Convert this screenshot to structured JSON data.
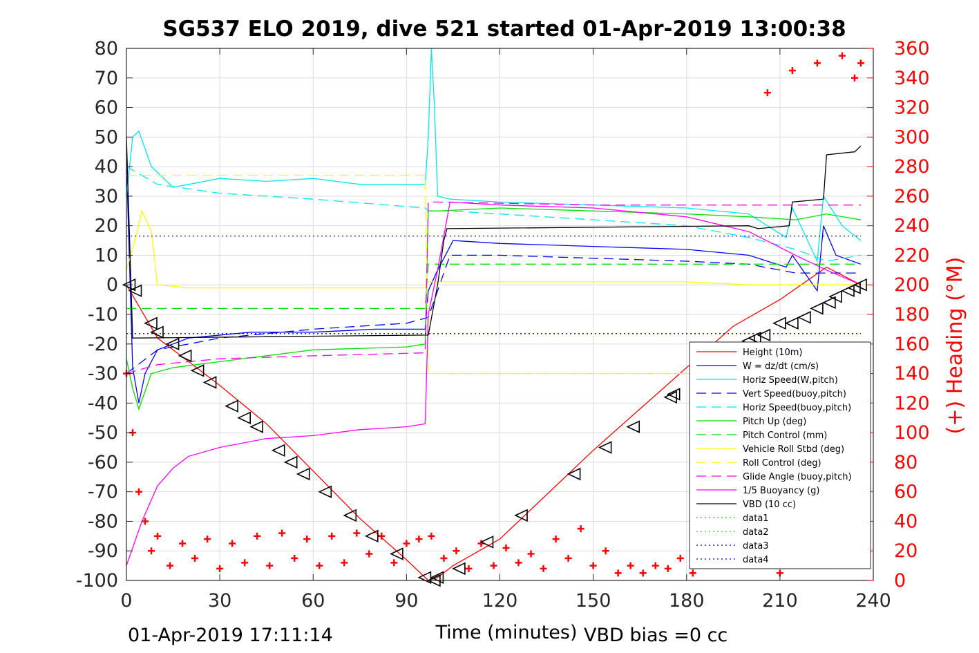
{
  "chart_data": {
    "type": "line",
    "title": "SG537 ELO 2019, dive 521 started 01-Apr-2019 13:00:38",
    "xlabel": "Time (minutes)",
    "ylabel_right": "(+) Heading (°M)",
    "xlim": [
      0,
      240
    ],
    "ylim": [
      -100,
      80
    ],
    "ylim_right": [
      0,
      360
    ],
    "xticks": [
      "0",
      "30",
      "60",
      "90",
      "120",
      "150",
      "180",
      "210",
      "240"
    ],
    "yticks": [
      "80",
      "70",
      "60",
      "50",
      "40",
      "30",
      "20",
      "10",
      "0",
      "-10",
      "-20",
      "-30",
      "-40",
      "-50",
      "-60",
      "-70",
      "-80",
      "-90",
      "-100"
    ],
    "yticks_right": [
      "360",
      "340",
      "320",
      "300",
      "280",
      "260",
      "240",
      "220",
      "200",
      "180",
      "160",
      "140",
      "120",
      "100",
      "80",
      "60",
      "40",
      "20",
      "0"
    ],
    "grid": true,
    "legend_position": "bottom-right",
    "footer_left": "01-Apr-2019 17:11:14",
    "footer_right": "VBD bias =0 cc",
    "series": [
      {
        "name": "Height (10m)",
        "color": "#ff0000",
        "style": "solid",
        "x": [
          0,
          10,
          20,
          30,
          45,
          60,
          75,
          90,
          97,
          100,
          105,
          120,
          135,
          150,
          165,
          180,
          195,
          210,
          225,
          236
        ],
        "y": [
          0,
          -18,
          -26,
          -34,
          -47,
          -63,
          -79,
          -93,
          -100,
          -99,
          -95,
          -86,
          -71,
          -56,
          -42,
          -28,
          -14,
          -5,
          6,
          0
        ]
      },
      {
        "name": "W = dz/dt (cm/s)",
        "color": "#0000ff",
        "style": "solid",
        "x": [
          0,
          2,
          4,
          6,
          10,
          20,
          40,
          60,
          80,
          96,
          97,
          100,
          105,
          120,
          150,
          180,
          200,
          212,
          214,
          222,
          224,
          228,
          236
        ],
        "y": [
          42,
          -28,
          -40,
          -30,
          -22,
          -18,
          -16,
          -16,
          -15,
          -15,
          -2,
          5,
          15,
          14,
          13,
          12,
          10,
          6,
          10,
          -2,
          20,
          10,
          7
        ]
      },
      {
        "name": "Horiz Speed(W,pitch)",
        "color": "#00e5ee",
        "style": "solid",
        "x": [
          0,
          2,
          4,
          8,
          15,
          30,
          45,
          60,
          75,
          90,
          96,
          97,
          98,
          99,
          100,
          104,
          120,
          150,
          180,
          200,
          212,
          214,
          222,
          224,
          230,
          236
        ],
        "y": [
          30,
          50,
          52,
          40,
          33,
          36,
          35,
          36,
          34,
          34,
          34,
          50,
          80,
          60,
          30,
          29,
          28,
          27,
          26,
          24,
          16,
          26,
          8,
          30,
          20,
          15
        ]
      },
      {
        "name": "Vert Speed(buoy,pitch)",
        "color": "#0000ff",
        "style": "dashed",
        "x": [
          0,
          10,
          30,
          60,
          90,
          97,
          104,
          120,
          150,
          180,
          200,
          215,
          236
        ],
        "y": [
          -30,
          -22,
          -18,
          -15,
          -13,
          -11,
          10,
          10,
          9,
          8,
          7,
          4,
          4
        ]
      },
      {
        "name": "Horiz Speed(buoy,pitch)",
        "color": "#00e5ee",
        "style": "dashed",
        "x": [
          0,
          10,
          30,
          60,
          96,
          97,
          104,
          120,
          150,
          180,
          200,
          215,
          225,
          236
        ],
        "y": [
          40,
          34,
          31,
          29,
          26,
          25,
          25,
          24,
          22,
          20,
          16,
          12,
          8,
          10
        ]
      },
      {
        "name": "Pitch Up (deg)",
        "color": "#00dd00",
        "style": "solid",
        "x": [
          0,
          2,
          4,
          8,
          15,
          30,
          60,
          90,
          96,
          97,
          100,
          120,
          150,
          180,
          200,
          215,
          225,
          236
        ],
        "y": [
          -25,
          -35,
          -42,
          -30,
          -28,
          -26,
          -22,
          -21,
          -20,
          25,
          25,
          26,
          25,
          24,
          23,
          22,
          24,
          22
        ]
      },
      {
        "name": "Pitch Control (mm)",
        "color": "#00dd00",
        "style": "dashed",
        "x": [
          0,
          5,
          30,
          96,
          97,
          120,
          180,
          236
        ],
        "y": [
          -8,
          -8,
          -8,
          -8,
          7,
          7,
          7,
          7
        ]
      },
      {
        "name": "Vehicle Roll Stbd (deg)",
        "color": "#ffff00",
        "style": "solid",
        "x": [
          0,
          3,
          5,
          8,
          10,
          20,
          40,
          60,
          80,
          96,
          97,
          120,
          150,
          180,
          200,
          236
        ],
        "y": [
          5,
          16,
          25,
          18,
          0,
          -1,
          -1,
          -1,
          -1,
          -1,
          1,
          1,
          1,
          1,
          0,
          0
        ]
      },
      {
        "name": "Roll Control (deg)",
        "color": "#ffff00",
        "style": "dashed",
        "x": [
          0,
          96,
          97,
          236
        ],
        "y": [
          37,
          37,
          -30,
          -30
        ]
      },
      {
        "name": "Glide Angle (buoy,pitch)",
        "color": "#ff00ff",
        "style": "dashed",
        "x": [
          0,
          10,
          30,
          60,
          96,
          97,
          100,
          150,
          200,
          236
        ],
        "y": [
          -30,
          -27,
          -25,
          -24,
          -23,
          28,
          28,
          27,
          27,
          27
        ]
      },
      {
        "name": "1/5 Buoyancy (g)",
        "color": "#ff00ff",
        "style": "solid",
        "x": [
          0,
          5,
          10,
          15,
          20,
          30,
          45,
          60,
          75,
          90,
          96,
          97,
          100,
          104,
          120,
          150,
          180,
          200,
          215,
          225,
          236
        ],
        "y": [
          -95,
          -80,
          -68,
          -62,
          -58,
          -55,
          -52,
          -51,
          -49,
          -48,
          -47,
          -10,
          5,
          28,
          27,
          26,
          23,
          18,
          10,
          5,
          0
        ]
      },
      {
        "name": "VBD (10 cc)",
        "color": "#000000",
        "style": "solid",
        "x": [
          0,
          2,
          3,
          97,
          100,
          102,
          103,
          200,
          203,
          213,
          214,
          224,
          225,
          234,
          236
        ],
        "y": [
          50,
          -18,
          -18,
          -17,
          0,
          15,
          19,
          20,
          19,
          20,
          28,
          29,
          44,
          45,
          47
        ]
      },
      {
        "name": "data1",
        "color": "#00dd00",
        "style": "dotted",
        "x": [],
        "y": []
      },
      {
        "name": "data2",
        "color": "#00dd00",
        "style": "dotted",
        "x": [],
        "y": []
      },
      {
        "name": "data3",
        "color": "#0000aa",
        "style": "dotted",
        "x": [
          0,
          236
        ],
        "y": [
          16.5,
          16.5
        ]
      },
      {
        "name": "data4",
        "color": "#0000aa",
        "style": "dotted",
        "x": [
          0,
          236
        ],
        "y": [
          -16.5,
          -16.5
        ]
      }
    ],
    "heading_series": {
      "color": "#ff0000",
      "marker": "+",
      "x": [
        0,
        2,
        4,
        6,
        8,
        10,
        14,
        18,
        22,
        26,
        30,
        34,
        38,
        42,
        46,
        50,
        54,
        58,
        62,
        66,
        70,
        74,
        78,
        82,
        86,
        90,
        94,
        98,
        102,
        106,
        110,
        114,
        118,
        122,
        126,
        130,
        134,
        138,
        142,
        146,
        150,
        154,
        158,
        162,
        166,
        170,
        174,
        178,
        182,
        186,
        190,
        196,
        202,
        206,
        210,
        214,
        218,
        222,
        226,
        230,
        234,
        236
      ],
      "y": [
        140,
        100,
        60,
        40,
        20,
        30,
        10,
        25,
        15,
        28,
        8,
        25,
        12,
        30,
        10,
        32,
        15,
        28,
        10,
        30,
        12,
        32,
        18,
        30,
        12,
        25,
        28,
        30,
        15,
        20,
        8,
        25,
        10,
        22,
        12,
        18,
        8,
        28,
        15,
        35,
        10,
        20,
        5,
        10,
        5,
        10,
        8,
        15,
        5,
        15,
        20,
        18,
        10,
        330,
        5,
        345,
        15,
        350,
        10,
        355,
        340,
        350
      ]
    },
    "markers": {
      "symbol": "triangle",
      "color": "#000000",
      "x": [
        1,
        3,
        8,
        10,
        15,
        19,
        23,
        27,
        34,
        38,
        42,
        49,
        53,
        57,
        64,
        72,
        79,
        87,
        96,
        99,
        100,
        107,
        116,
        127,
        144,
        154,
        163,
        175,
        176,
        184,
        186,
        189,
        200,
        202,
        205,
        210,
        214,
        218,
        222,
        226,
        228,
        232,
        234,
        236
      ],
      "y": [
        0,
        -2,
        -13,
        -16,
        -20,
        -24,
        -29,
        -33,
        -41,
        -45,
        -48,
        -56,
        -60,
        -64,
        -70,
        -78,
        -85,
        -91,
        -99,
        -100,
        -99,
        -96,
        -87,
        -78,
        -64,
        -55,
        -48,
        -38,
        -37,
        -31,
        -28,
        -26,
        -19,
        -18,
        -17,
        -13,
        -13,
        -11,
        -8,
        -6,
        -4,
        -2,
        -1,
        0
      ]
    }
  }
}
